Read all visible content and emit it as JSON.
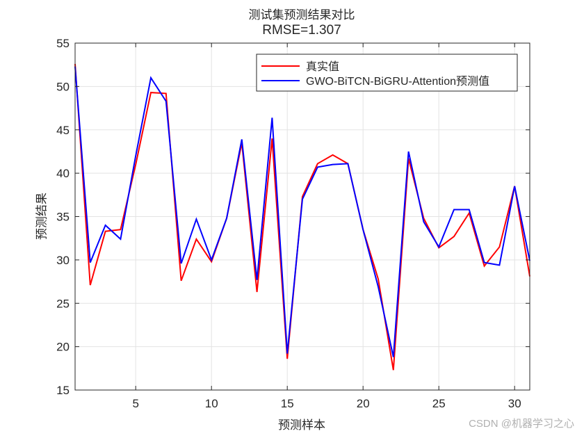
{
  "title": {
    "line1": "测试集预测结果对比",
    "line2": "RMSE=1.307"
  },
  "axes": {
    "xlabel": "预测样本",
    "ylabel": "预测结果",
    "xticks": [
      5,
      10,
      15,
      20,
      25,
      30
    ],
    "yticks": [
      15,
      20,
      25,
      30,
      35,
      40,
      45,
      50,
      55
    ],
    "xlim": [
      1,
      31
    ],
    "ylim": [
      15,
      55
    ]
  },
  "legend": {
    "items": [
      {
        "label": "真实值",
        "color": "#ff0000"
      },
      {
        "label": "GWO-BiTCN-BiGRU-Attention预测值",
        "color": "#0000ff"
      }
    ]
  },
  "watermark": "CSDN @机器学习之心",
  "chart_data": {
    "type": "line",
    "title": "测试集预测结果对比 RMSE=1.307",
    "xlabel": "预测样本",
    "ylabel": "预测结果",
    "xlim": [
      1,
      31
    ],
    "ylim": [
      15,
      55
    ],
    "grid": true,
    "legend_position": "upper right",
    "x": [
      1,
      2,
      3,
      4,
      5,
      6,
      7,
      8,
      9,
      10,
      11,
      12,
      13,
      14,
      15,
      16,
      17,
      18,
      19,
      20,
      21,
      22,
      23,
      24,
      25,
      26,
      27,
      28,
      29,
      30,
      31
    ],
    "series": [
      {
        "name": "真实值",
        "color": "#ff0000",
        "values": [
          52.6,
          27.1,
          33.3,
          33.5,
          41.0,
          49.3,
          49.2,
          27.6,
          32.4,
          29.8,
          34.8,
          43.5,
          26.3,
          44.0,
          18.6,
          37.3,
          41.1,
          42.1,
          41.1,
          33.5,
          27.8,
          17.3,
          41.7,
          34.8,
          31.4,
          32.7,
          35.4,
          29.3,
          31.5,
          38.5,
          28.1
        ]
      },
      {
        "name": "GWO-BiTCN-BiGRU-Attention预测值",
        "color": "#0000ff",
        "values": [
          52.3,
          29.7,
          34.0,
          32.4,
          42.0,
          51.0,
          48.3,
          29.6,
          34.7,
          30.0,
          34.8,
          43.9,
          27.7,
          46.4,
          19.2,
          37.0,
          40.7,
          41.0,
          41.1,
          33.5,
          26.9,
          18.8,
          42.5,
          34.4,
          31.5,
          35.8,
          35.8,
          29.7,
          29.4,
          38.5,
          29.9
        ]
      }
    ]
  }
}
